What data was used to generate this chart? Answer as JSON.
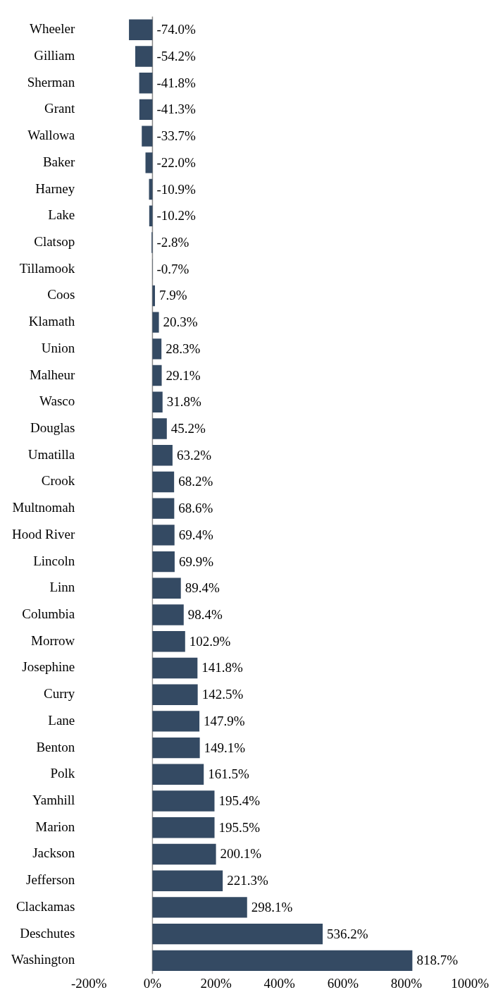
{
  "chart_data": {
    "type": "bar",
    "orientation": "horizontal",
    "categories": [
      "Wheeler",
      "Gilliam",
      "Sherman",
      "Grant",
      "Wallowa",
      "Baker",
      "Harney",
      "Lake",
      "Clatsop",
      "Tillamook",
      "Coos",
      "Klamath",
      "Union",
      "Malheur",
      "Wasco",
      "Douglas",
      "Umatilla",
      "Crook",
      "Multnomah",
      "Hood River",
      "Lincoln",
      "Linn",
      "Columbia",
      "Morrow",
      "Josephine",
      "Curry",
      "Lane",
      "Benton",
      "Polk",
      "Yamhill",
      "Marion",
      "Jackson",
      "Jefferson",
      "Clackamas",
      "Deschutes",
      "Washington"
    ],
    "values": [
      -74.0,
      -54.2,
      -41.8,
      -41.3,
      -33.7,
      -22.0,
      -10.9,
      -10.2,
      -2.8,
      -0.7,
      7.9,
      20.3,
      28.3,
      29.1,
      31.8,
      45.2,
      63.2,
      68.2,
      68.6,
      69.4,
      69.9,
      89.4,
      98.4,
      102.9,
      141.8,
      142.5,
      147.9,
      149.1,
      161.5,
      195.4,
      195.5,
      200.1,
      221.3,
      298.1,
      536.2,
      818.7
    ],
    "value_labels": [
      "-74.0%",
      "-54.2%",
      "-41.8%",
      "-41.3%",
      "-33.7%",
      "-22.0%",
      "-10.9%",
      "-10.2%",
      "-2.8%",
      "-0.7%",
      "7.9%",
      "20.3%",
      "28.3%",
      "29.1%",
      "31.8%",
      "45.2%",
      "63.2%",
      "68.2%",
      "68.6%",
      "69.4%",
      "69.9%",
      "89.4%",
      "98.4%",
      "102.9%",
      "141.8%",
      "142.5%",
      "147.9%",
      "149.1%",
      "161.5%",
      "195.4%",
      "195.5%",
      "200.1%",
      "221.3%",
      "298.1%",
      "536.2%",
      "818.7%"
    ],
    "color": "#344a63",
    "xlim": [
      -200,
      1000
    ],
    "xticks": [
      {
        "value": -200,
        "label": "-200%"
      },
      {
        "value": 0,
        "label": "0%"
      },
      {
        "value": 200,
        "label": "200%"
      },
      {
        "value": 400,
        "label": "400%"
      },
      {
        "value": 600,
        "label": "600%"
      },
      {
        "value": 800,
        "label": "800%"
      },
      {
        "value": 1000,
        "label": "1000%"
      }
    ],
    "ref_lines": [
      {
        "axis": "x",
        "value": 0,
        "color": "#888888"
      }
    ],
    "grid": false,
    "legend": false
  }
}
